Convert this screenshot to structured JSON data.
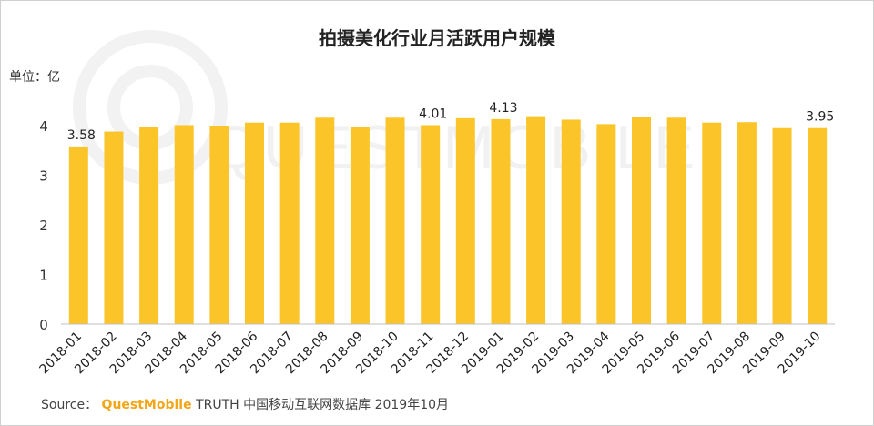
{
  "chart_data": {
    "type": "bar",
    "title": "拍摄美化行业月活跃用户规模",
    "ylabel": "单位：亿",
    "ylim": [
      0,
      4
    ],
    "yticks": [
      0,
      1,
      2,
      3,
      4
    ],
    "grid": false,
    "categories": [
      "2018-01",
      "2018-02",
      "2018-03",
      "2018-04",
      "2018-05",
      "2018-06",
      "2018-07",
      "2018-08",
      "2018-09",
      "2018-10",
      "2018-11",
      "2018-12",
      "2019-01",
      "2019-02",
      "2019-03",
      "2019-04",
      "2019-05",
      "2019-06",
      "2019-07",
      "2019-08",
      "2019-09",
      "2019-10"
    ],
    "values": [
      3.58,
      3.88,
      3.97,
      4.01,
      4.0,
      4.06,
      4.06,
      4.16,
      3.97,
      4.16,
      4.01,
      4.15,
      4.13,
      4.19,
      4.12,
      4.03,
      4.18,
      4.16,
      4.06,
      4.07,
      3.95,
      3.95
    ],
    "data_labels": [
      {
        "index": 0,
        "text": "3.58"
      },
      {
        "index": 10,
        "text": "4.01"
      },
      {
        "index": 12,
        "text": "4.13"
      },
      {
        "index": 21,
        "text": "3.95"
      }
    ],
    "bar_color": "#fbc52a",
    "watermark": "QUESTMOBILE"
  },
  "source": {
    "prefix": "Source：",
    "brand": "QuestMobile",
    "rest": "TRUTH 中国移动互联网数据库 2019年10月"
  }
}
